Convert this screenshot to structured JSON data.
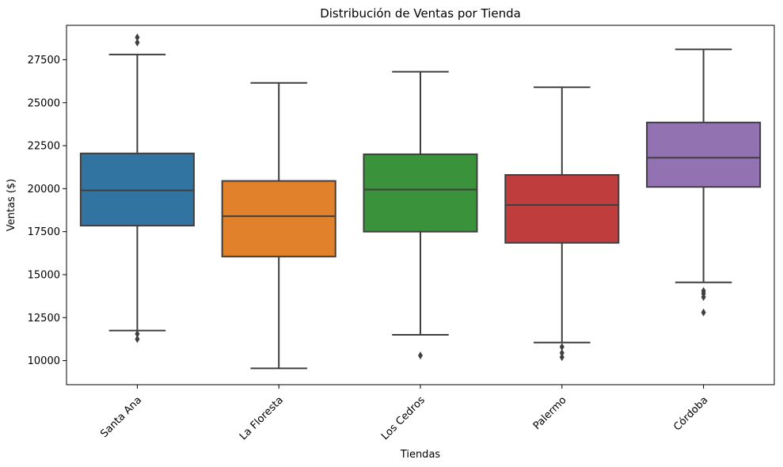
{
  "chart_data": {
    "type": "box",
    "title": "Distribución de Ventas por Tienda",
    "xlabel": "Tiendas",
    "ylabel": "Ventas ($)",
    "ylim": [
      8600,
      29500
    ],
    "yticks": [
      10000,
      12500,
      15000,
      17500,
      20000,
      22500,
      25000,
      27500
    ],
    "grid": false,
    "legend": "none",
    "categories": [
      "Santa Ana",
      "La Floresta",
      "Los Cedros",
      "Palermo",
      "Córdoba"
    ],
    "boxes": [
      {
        "category": "Santa Ana",
        "color": "#3274a1",
        "whisker_low": 11750,
        "q1": 17850,
        "median": 19900,
        "q3": 22050,
        "whisker_high": 27800,
        "outliers": [
          11550,
          11250,
          28500,
          28800
        ]
      },
      {
        "category": "La Floresta",
        "color": "#e1812c",
        "whisker_low": 9550,
        "q1": 16050,
        "median": 18400,
        "q3": 20450,
        "whisker_high": 26150,
        "outliers": []
      },
      {
        "category": "Los Cedros",
        "color": "#3a923a",
        "whisker_low": 11500,
        "q1": 17500,
        "median": 19950,
        "q3": 22000,
        "whisker_high": 26800,
        "outliers": [
          10300
        ]
      },
      {
        "category": "Palermo",
        "color": "#c03d3e",
        "whisker_low": 11050,
        "q1": 16850,
        "median": 19050,
        "q3": 20800,
        "whisker_high": 25900,
        "outliers": [
          10800,
          10450,
          10200
        ]
      },
      {
        "category": "Córdoba",
        "color": "#9372b2",
        "whisker_low": 14550,
        "q1": 20100,
        "median": 21800,
        "q3": 23850,
        "whisker_high": 28100,
        "outliers": [
          14050,
          13900,
          13700,
          12800
        ]
      }
    ]
  }
}
